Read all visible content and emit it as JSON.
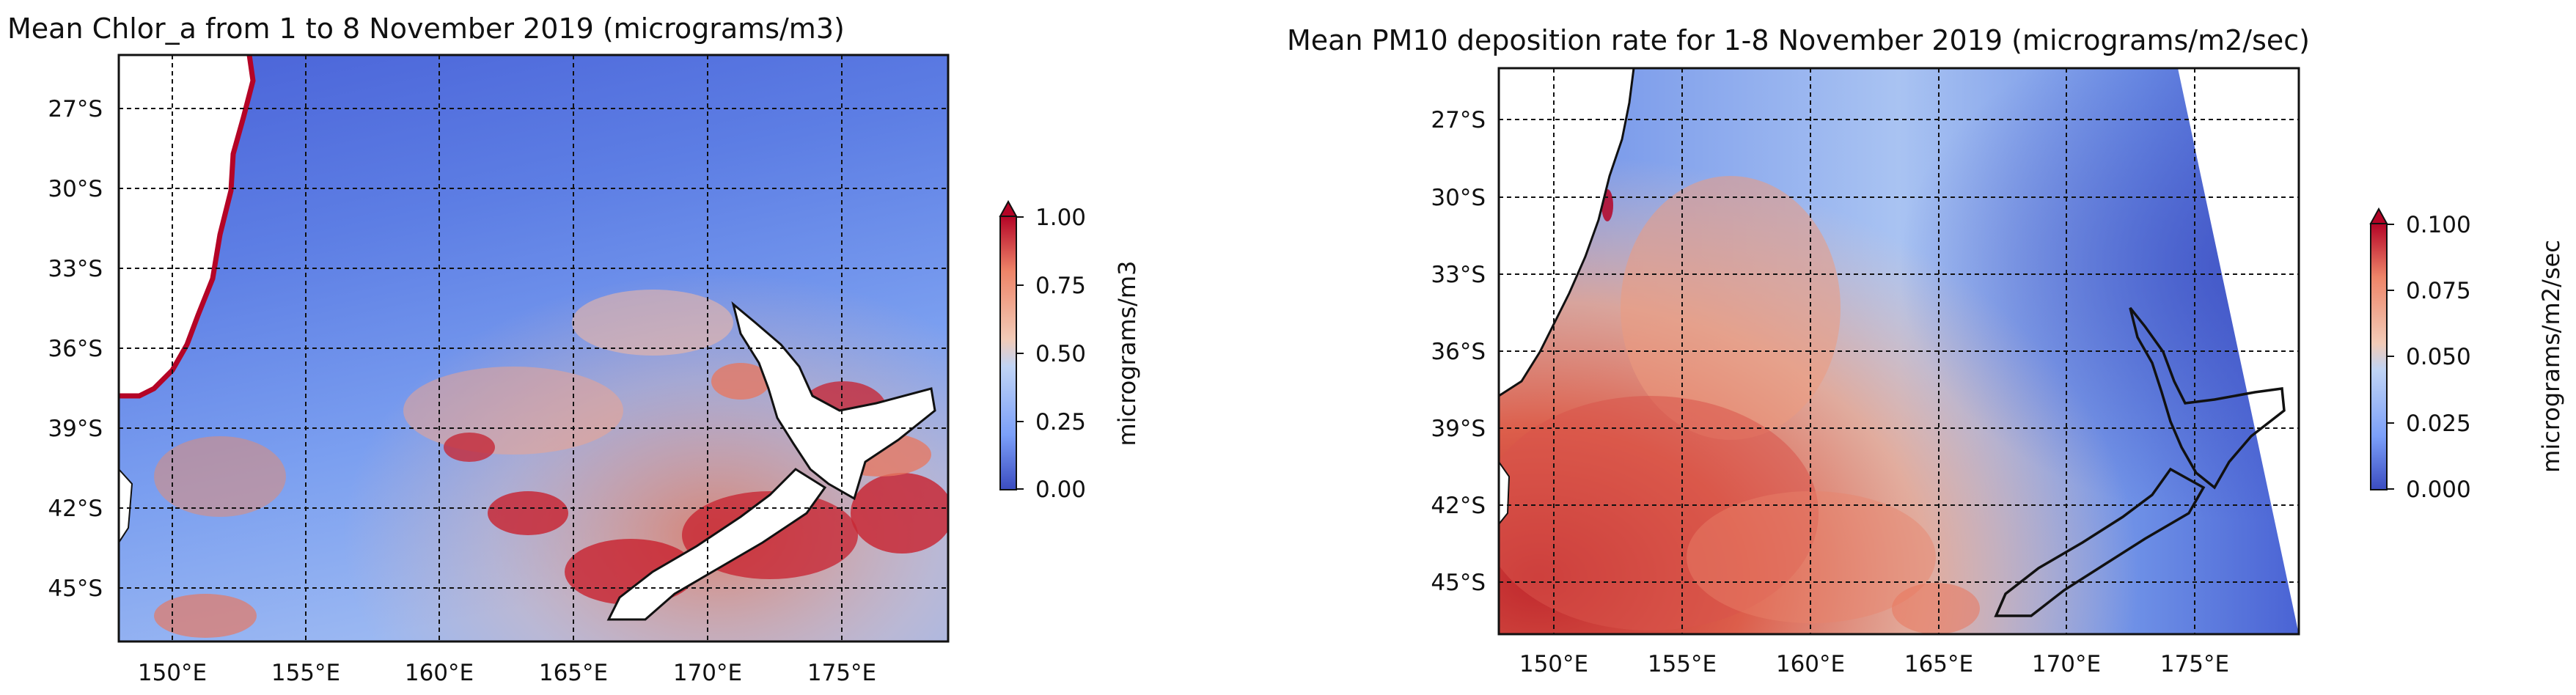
{
  "chart_data": [
    {
      "type": "heatmap",
      "title": "Mean Chlor_a from 1 to 8 November 2019  (micrograms/m3)",
      "x_ticks": [
        "150°E",
        "155°E",
        "160°E",
        "165°E",
        "170°E",
        "175°E"
      ],
      "x_tick_values": [
        150,
        155,
        160,
        165,
        170,
        175
      ],
      "y_ticks": [
        "27°S",
        "30°S",
        "33°S",
        "36°S",
        "39°S",
        "42°S",
        "45°S"
      ],
      "y_tick_values": [
        -27,
        -30,
        -33,
        -36,
        -39,
        -42,
        -45
      ],
      "xlim": [
        148,
        179
      ],
      "ylim": [
        -47,
        -25
      ],
      "grid": true,
      "colorbar": {
        "label": "micrograms/m3",
        "ticks": [
          "0.00",
          "0.25",
          "0.50",
          "0.75",
          "1.00"
        ],
        "tick_values": [
          0,
          0.25,
          0.5,
          0.75,
          1.0
        ],
        "range": [
          0,
          1.0
        ],
        "extend": "max",
        "colormap": [
          "#3b4cc0",
          "#7b9ff9",
          "#c0d4f5",
          "#f2cbb7",
          "#ee8468",
          "#b40426"
        ]
      }
    },
    {
      "type": "heatmap",
      "title": "Mean PM10 deposition rate for 1-8 November 2019 (micrograms/m2/sec)",
      "x_ticks": [
        "150°E",
        "155°E",
        "160°E",
        "165°E",
        "170°E",
        "175°E"
      ],
      "x_tick_values": [
        150,
        155,
        160,
        165,
        170,
        175
      ],
      "y_ticks": [
        "27°S",
        "30°S",
        "33°S",
        "36°S",
        "39°S",
        "42°S",
        "45°S"
      ],
      "y_tick_values": [
        -27,
        -30,
        -33,
        -36,
        -39,
        -42,
        -45
      ],
      "xlim": [
        148,
        179
      ],
      "ylim": [
        -47,
        -25
      ],
      "grid": true,
      "colorbar": {
        "label": "micrograms/m2/sec",
        "ticks": [
          "0.000",
          "0.025",
          "0.050",
          "0.075",
          "0.100"
        ],
        "tick_values": [
          0,
          0.025,
          0.05,
          0.075,
          0.1
        ],
        "range": [
          0,
          0.1
        ],
        "extend": "max",
        "colormap": [
          "#3b4cc0",
          "#7b9ff9",
          "#c0d4f5",
          "#f2cbb7",
          "#ee8468",
          "#b40426"
        ]
      }
    }
  ]
}
